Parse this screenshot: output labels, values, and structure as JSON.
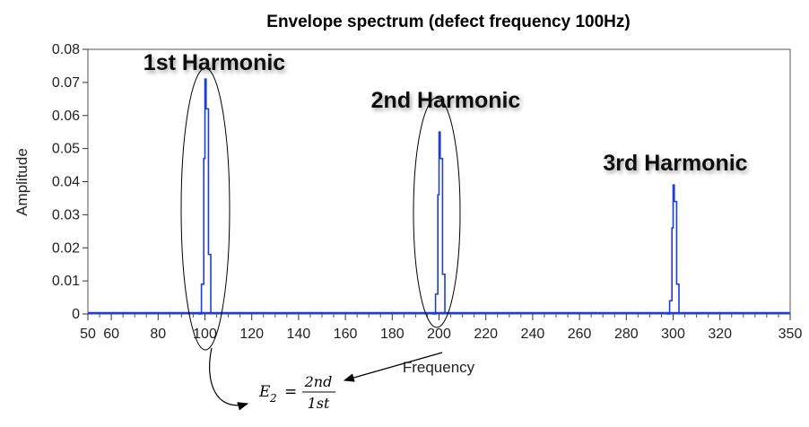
{
  "chart_data": {
    "type": "line",
    "title": "Envelope spectrum (defect frequency 100Hz)",
    "xlabel": "Frequency",
    "ylabel": "Amplitude",
    "xlim": [
      50,
      350
    ],
    "ylim": [
      0,
      0.08
    ],
    "x_ticks": [
      50,
      60,
      80,
      100,
      120,
      140,
      160,
      180,
      200,
      220,
      240,
      260,
      280,
      300,
      320,
      350
    ],
    "y_ticks": [
      0,
      0.01,
      0.02,
      0.03,
      0.04,
      0.05,
      0.06,
      0.07,
      0.08
    ],
    "y_tick_labels": [
      "0",
      "0.01",
      "0.02",
      "0.03",
      "0.04",
      "0.05",
      "0.06",
      "0.07",
      "0.08"
    ],
    "grid": false,
    "series": [
      {
        "color": "#1f3fd0",
        "peaks": [
          {
            "x": [
              97.5,
              98.5,
              99.5,
              100,
              100.5,
              101.5,
              102.5
            ],
            "y": [
              0,
              0.009,
              0.047,
              0.071,
              0.062,
              0.018,
              0
            ]
          },
          {
            "x": [
              197.5,
              198.5,
              199.5,
              200,
              200.5,
              201.5,
              202.5
            ],
            "y": [
              0,
              0.006,
              0.036,
              0.055,
              0.047,
              0.012,
              0
            ]
          },
          {
            "x": [
              297.5,
              298.5,
              299.5,
              300,
              300.5,
              301.5,
              302.5
            ],
            "y": [
              0,
              0.004,
              0.026,
              0.039,
              0.034,
              0.009,
              0
            ]
          }
        ]
      }
    ],
    "annotations": [
      {
        "text": "1st Harmonic",
        "x": 100
      },
      {
        "text": "2nd Harmonic",
        "x": 200
      },
      {
        "text": "3rd Harmonic",
        "x": 300
      }
    ],
    "equation": {
      "lhs": "E",
      "sub": "2",
      "eq": "=",
      "num": "2nd",
      "den": "1st"
    }
  }
}
